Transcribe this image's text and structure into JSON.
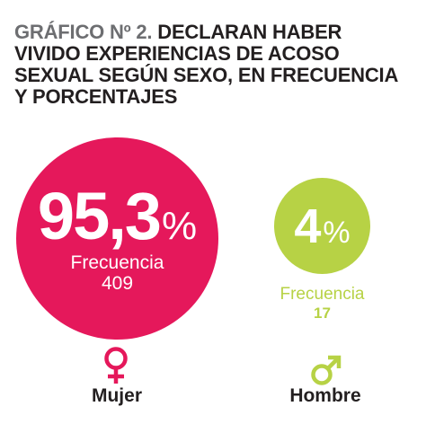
{
  "title": {
    "prefix": "GRÁFICO Nº 2.",
    "text": "DECLARAN HABER VIVIDO EXPERIENCIAS DE ACOSO SEXUAL SEGÚN SEXO, EN FRECUENCIA Y PORCENTAJES"
  },
  "colors": {
    "mujer": "#e5185b",
    "hombre": "#b7d245"
  },
  "icons": {
    "mujer": "female-symbol-icon",
    "hombre": "male-symbol-icon"
  },
  "chart_data": {
    "type": "bubble",
    "title": "GRÁFICO Nº 2. DECLARAN HABER VIVIDO EXPERIENCIAS DE ACOSO SEXUAL SEGÚN SEXO, EN FRECUENCIA Y PORCENTAJES",
    "categories": [
      "Mujer",
      "Hombre"
    ],
    "series": [
      {
        "category": "Mujer",
        "percentage": 95.3,
        "percentage_label": "95,3",
        "percent_sign": "%",
        "frequency_label": "Frecuencia",
        "frequency": 409,
        "frequency_text": "409"
      },
      {
        "category": "Hombre",
        "percentage": 4,
        "percentage_label": "4",
        "percent_sign": "%",
        "frequency_label": "Frecuencia",
        "frequency": 17,
        "frequency_text": "17"
      }
    ]
  }
}
